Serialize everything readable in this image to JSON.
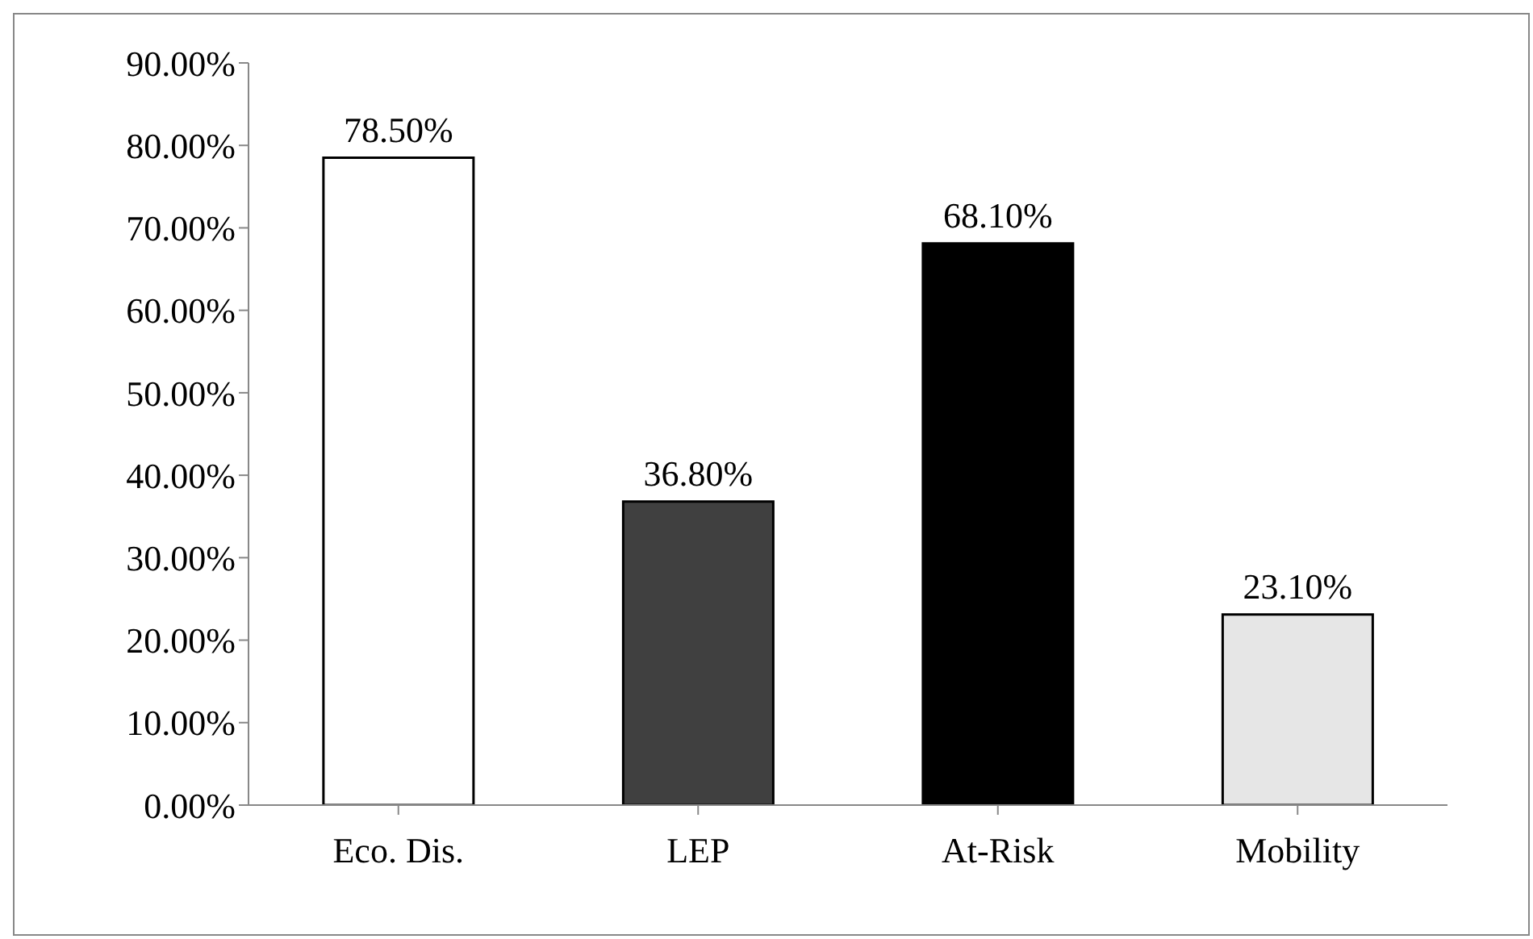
{
  "chart_data": {
    "type": "bar",
    "categories": [
      "Eco. Dis.",
      "LEP",
      "At-Risk",
      "Mobility"
    ],
    "values": [
      78.5,
      36.8,
      68.1,
      23.1
    ],
    "colors": [
      "#ffffff",
      "#404040",
      "#000000",
      "#e6e6e6"
    ],
    "value_labels": [
      "78.50%",
      "36.80%",
      "68.10%",
      "23.10%"
    ],
    "ylim": [
      0,
      90
    ],
    "yticks": [
      {
        "value": 0,
        "label": "0.00%"
      },
      {
        "value": 10,
        "label": "10.00%"
      },
      {
        "value": 20,
        "label": "20.00%"
      },
      {
        "value": 30,
        "label": "30.00%"
      },
      {
        "value": 40,
        "label": "40.00%"
      },
      {
        "value": 50,
        "label": "50.00%"
      },
      {
        "value": 60,
        "label": "60.00%"
      },
      {
        "value": 70,
        "label": "70.00%"
      },
      {
        "value": 80,
        "label": "80.00%"
      },
      {
        "value": 90,
        "label": "90.00%"
      }
    ],
    "grid": false,
    "legend": false
  }
}
